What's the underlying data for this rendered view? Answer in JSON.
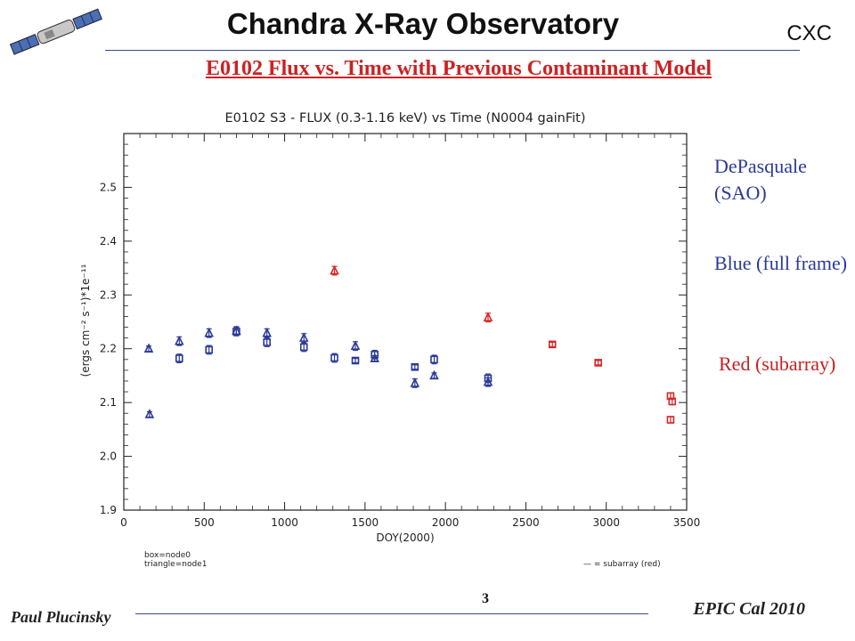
{
  "header": {
    "title": "Chandra X-Ray Observatory",
    "org": "CXC",
    "subtitle": "E0102 Flux vs. Time with Previous Contaminant Model"
  },
  "notes": [
    {
      "text": "DePasquale (SAO)",
      "color": "#2a3a96"
    },
    {
      "text": "Blue (full frame)",
      "color": "#2a3a96"
    },
    {
      "text": "Red (subarray)",
      "color": "#c82020"
    }
  ],
  "footer": {
    "author": "Paul Plucinsky",
    "page": "3",
    "event": "EPIC Cal 2010"
  },
  "chart_data": {
    "type": "scatter",
    "title": "E0102 S3 - FLUX (0.3-1.16 keV) vs Time (N0004 gainFit)",
    "xlabel": "DOY(2000)",
    "ylabel": "(ergs cm⁻² s⁻¹)*1e⁻¹¹",
    "xlim": [
      0,
      3500
    ],
    "ylim": [
      1.9,
      2.6
    ],
    "xticks": [
      0,
      500,
      1000,
      1500,
      2000,
      2500,
      3000,
      3500
    ],
    "xtick_labels": [
      "0",
      "500",
      "1000",
      "1500",
      "2000",
      "2500",
      "3000",
      "3500"
    ],
    "yticks": [
      1.9,
      2.0,
      2.1,
      2.2,
      2.3,
      2.4,
      2.5
    ],
    "ytick_labels": [
      "1.9",
      "2.0",
      "2.1",
      "2.2",
      "2.3",
      "2.4",
      "2.5"
    ],
    "key_left": [
      "box=node0",
      "triangle=node1"
    ],
    "key_right": "— = subarray (red)",
    "colors": {
      "full_frame": "#2a3a96",
      "subarray": "#d62828"
    },
    "series": [
      {
        "marker": "box",
        "color": "#2a3a96",
        "points": [
          {
            "x": 345,
            "y": 2.182,
            "err": 0.008
          },
          {
            "x": 530,
            "y": 2.198,
            "err": 0.008
          },
          {
            "x": 700,
            "y": 2.232,
            "err": 0.008
          },
          {
            "x": 890,
            "y": 2.212,
            "err": 0.008
          },
          {
            "x": 1120,
            "y": 2.203,
            "err": 0.008
          },
          {
            "x": 1310,
            "y": 2.183,
            "err": 0.008
          },
          {
            "x": 1440,
            "y": 2.178,
            "err": 0.004
          },
          {
            "x": 1560,
            "y": 2.189,
            "err": 0.008
          },
          {
            "x": 1810,
            "y": 2.166,
            "err": 0.004
          },
          {
            "x": 1930,
            "y": 2.18,
            "err": 0.008
          },
          {
            "x": 2265,
            "y": 2.145,
            "err": 0.008
          }
        ]
      },
      {
        "marker": "triangle",
        "color": "#2a3a96",
        "points": [
          {
            "x": 155,
            "y": 2.2,
            "err": 0.005
          },
          {
            "x": 160,
            "y": 2.078,
            "err": 0.005
          },
          {
            "x": 345,
            "y": 2.214,
            "err": 0.008
          },
          {
            "x": 530,
            "y": 2.229,
            "err": 0.008
          },
          {
            "x": 700,
            "y": 2.233,
            "err": 0.008
          },
          {
            "x": 890,
            "y": 2.229,
            "err": 0.008
          },
          {
            "x": 1120,
            "y": 2.22,
            "err": 0.008
          },
          {
            "x": 1440,
            "y": 2.205,
            "err": 0.008
          },
          {
            "x": 1560,
            "y": 2.182,
            "err": 0.005
          },
          {
            "x": 1810,
            "y": 2.136,
            "err": 0.008
          },
          {
            "x": 1930,
            "y": 2.15,
            "err": 0.005
          },
          {
            "x": 2265,
            "y": 2.138,
            "err": 0.008
          }
        ]
      },
      {
        "marker": "box",
        "color": "#d62828",
        "points": [
          {
            "x": 2665,
            "y": 2.208,
            "err": 0.004
          },
          {
            "x": 2950,
            "y": 2.174,
            "err": 0.004
          },
          {
            "x": 3400,
            "y": 2.112,
            "err": 0.006
          },
          {
            "x": 3410,
            "y": 2.102,
            "err": 0.006
          },
          {
            "x": 3400,
            "y": 2.068,
            "err": 0.006
          }
        ]
      },
      {
        "marker": "triangle",
        "color": "#d62828",
        "points": [
          {
            "x": 1310,
            "y": 2.345,
            "err": 0.008
          },
          {
            "x": 2265,
            "y": 2.258,
            "err": 0.008
          }
        ]
      }
    ]
  }
}
